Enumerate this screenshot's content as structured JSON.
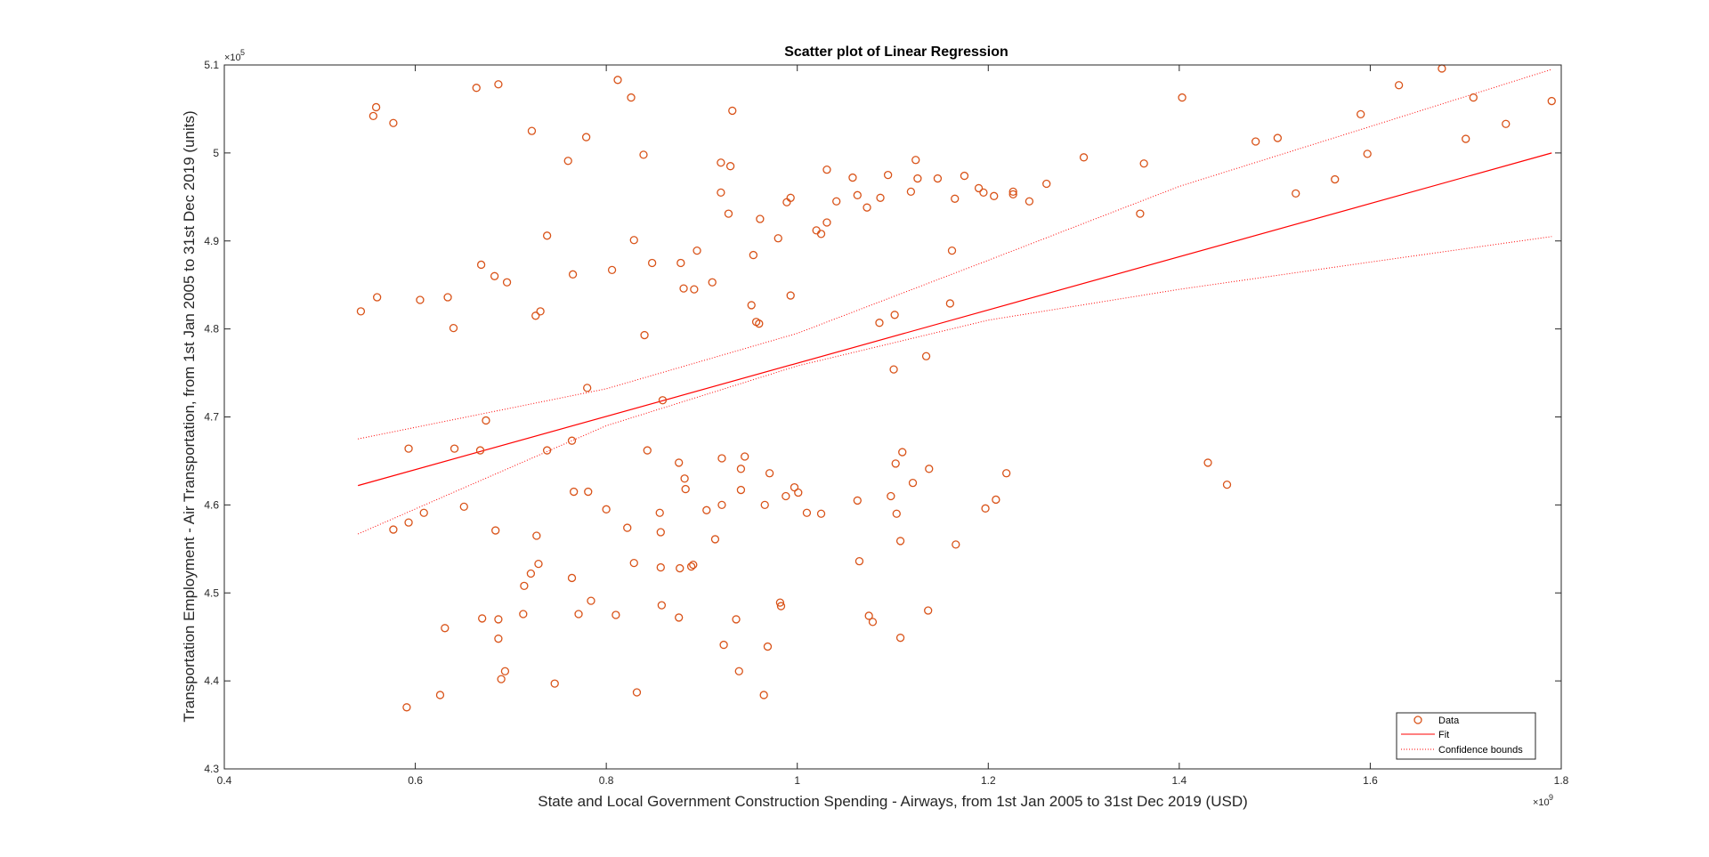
{
  "chart_data": {
    "type": "scatter",
    "title": "Scatter plot of Linear Regression",
    "xlabel": "State and Local Government Construction Spending - Airways, from 1st Jan 2005 to 31st Dec 2019 (USD)",
    "ylabel": "Transportation Employment - Air Transportation, from 1st Jan 2005 to 31st Dec 2019 (units)",
    "x_multiplier": "×10",
    "x_exponent": "9",
    "y_multiplier": "×10",
    "y_exponent": "5",
    "xlim": [
      0.4,
      1.8
    ],
    "ylim": [
      4.3,
      5.1
    ],
    "x_ticks": [
      0.4,
      0.6,
      0.8,
      1.0,
      1.2,
      1.4,
      1.6,
      1.8
    ],
    "x_tick_labels": [
      "0.4",
      "0.6",
      "0.8",
      "1",
      "1.2",
      "1.4",
      "1.6",
      "1.8"
    ],
    "y_ticks": [
      4.3,
      4.4,
      4.5,
      4.6,
      4.7,
      4.8,
      4.9,
      5.0,
      5.1
    ],
    "y_tick_labels": [
      "4.3",
      "4.4",
      "4.5",
      "4.6",
      "4.7",
      "4.8",
      "4.9",
      "5",
      "5.1"
    ],
    "grid": false,
    "legend_position": "bottom-right",
    "colors": {
      "data": "#d95319",
      "fit": "#ff0000",
      "bounds": "#ff0000",
      "axes": "#262626"
    },
    "series": [
      {
        "name": "Data",
        "marker": "circle",
        "points": [
          [
            0.543,
            4.82
          ],
          [
            0.556,
            5.042
          ],
          [
            0.559,
            5.052
          ],
          [
            0.56,
            4.836
          ],
          [
            0.577,
            5.034
          ],
          [
            0.593,
            4.664
          ],
          [
            0.605,
            4.833
          ],
          [
            0.634,
            4.836
          ],
          [
            0.64,
            4.801
          ],
          [
            0.641,
            4.664
          ],
          [
            0.664,
            5.074
          ],
          [
            0.669,
            4.873
          ],
          [
            0.674,
            4.696
          ],
          [
            0.683,
            4.86
          ],
          [
            0.687,
            5.078
          ],
          [
            0.696,
            4.853
          ],
          [
            0.668,
            4.662
          ],
          [
            0.577,
            4.572
          ],
          [
            0.593,
            4.58
          ],
          [
            0.609,
            4.591
          ],
          [
            0.651,
            4.598
          ],
          [
            0.684,
            4.571
          ],
          [
            0.591,
            4.37
          ],
          [
            0.626,
            4.384
          ],
          [
            0.631,
            4.46
          ],
          [
            0.67,
            4.471
          ],
          [
            0.687,
            4.47
          ],
          [
            0.687,
            4.448
          ],
          [
            0.69,
            4.402
          ],
          [
            0.694,
            4.411
          ],
          [
            0.713,
            4.476
          ],
          [
            0.714,
            4.508
          ],
          [
            0.721,
            4.522
          ],
          [
            0.722,
            5.025
          ],
          [
            0.726,
            4.815
          ],
          [
            0.727,
            4.565
          ],
          [
            0.729,
            4.533
          ],
          [
            0.731,
            4.82
          ],
          [
            0.738,
            4.906
          ],
          [
            0.738,
            4.662
          ],
          [
            0.746,
            4.397
          ],
          [
            0.76,
            4.991
          ],
          [
            0.764,
            4.517
          ],
          [
            0.765,
            4.862
          ],
          [
            0.766,
            4.615
          ],
          [
            0.764,
            4.673
          ],
          [
            0.771,
            4.476
          ],
          [
            0.779,
            5.018
          ],
          [
            0.78,
            4.733
          ],
          [
            0.781,
            4.615
          ],
          [
            0.784,
            4.491
          ],
          [
            0.8,
            4.595
          ],
          [
            0.806,
            4.867
          ],
          [
            0.81,
            4.475
          ],
          [
            0.812,
            5.083
          ],
          [
            0.822,
            4.574
          ],
          [
            0.826,
            5.063
          ],
          [
            0.829,
            4.534
          ],
          [
            0.829,
            4.901
          ],
          [
            0.832,
            4.387
          ],
          [
            0.839,
            4.998
          ],
          [
            0.84,
            4.793
          ],
          [
            0.843,
            4.662
          ],
          [
            0.848,
            4.875
          ],
          [
            0.856,
            4.591
          ],
          [
            0.857,
            4.529
          ],
          [
            0.857,
            4.569
          ],
          [
            0.858,
            4.486
          ],
          [
            0.859,
            4.719
          ],
          [
            0.876,
            4.648
          ],
          [
            0.876,
            4.472
          ],
          [
            0.877,
            4.528
          ],
          [
            0.878,
            4.875
          ],
          [
            0.881,
            4.846
          ],
          [
            0.882,
            4.63
          ],
          [
            0.883,
            4.618
          ],
          [
            0.889,
            4.53
          ],
          [
            0.891,
            4.532
          ],
          [
            0.892,
            4.845
          ],
          [
            0.895,
            4.889
          ],
          [
            0.905,
            4.594
          ],
          [
            0.911,
            4.853
          ],
          [
            0.914,
            4.561
          ],
          [
            0.92,
            4.989
          ],
          [
            0.92,
            4.955
          ],
          [
            0.921,
            4.653
          ],
          [
            0.921,
            4.6
          ],
          [
            0.923,
            4.441
          ],
          [
            0.928,
            4.931
          ],
          [
            0.93,
            4.985
          ],
          [
            0.932,
            5.048
          ],
          [
            0.936,
            4.47
          ],
          [
            0.939,
            4.411
          ],
          [
            0.941,
            4.617
          ],
          [
            0.941,
            4.641
          ],
          [
            0.945,
            4.655
          ],
          [
            0.952,
            4.827
          ],
          [
            0.954,
            4.884
          ],
          [
            0.957,
            4.808
          ],
          [
            0.96,
            4.806
          ],
          [
            0.961,
            4.925
          ],
          [
            0.965,
            4.384
          ],
          [
            0.966,
            4.6
          ],
          [
            0.969,
            4.439
          ],
          [
            0.971,
            4.636
          ],
          [
            0.98,
            4.903
          ],
          [
            0.982,
            4.489
          ],
          [
            0.983,
            4.485
          ],
          [
            0.988,
            4.61
          ],
          [
            0.989,
            4.944
          ],
          [
            0.993,
            4.949
          ],
          [
            0.993,
            4.838
          ],
          [
            0.997,
            4.62
          ],
          [
            1.001,
            4.614
          ],
          [
            1.01,
            4.591
          ],
          [
            1.02,
            4.912
          ],
          [
            1.025,
            4.908
          ],
          [
            1.025,
            4.59
          ],
          [
            1.031,
            4.921
          ],
          [
            1.031,
            4.981
          ],
          [
            1.041,
            4.945
          ],
          [
            1.058,
            4.972
          ],
          [
            1.063,
            4.952
          ],
          [
            1.063,
            4.605
          ],
          [
            1.065,
            4.536
          ],
          [
            1.073,
            4.938
          ],
          [
            1.075,
            4.474
          ],
          [
            1.079,
            4.467
          ],
          [
            1.086,
            4.807
          ],
          [
            1.087,
            4.949
          ],
          [
            1.095,
            4.975
          ],
          [
            1.098,
            4.61
          ],
          [
            1.101,
            4.754
          ],
          [
            1.102,
            4.816
          ],
          [
            1.103,
            4.647
          ],
          [
            1.104,
            4.59
          ],
          [
            1.108,
            4.449
          ],
          [
            1.108,
            4.559
          ],
          [
            1.11,
            4.66
          ],
          [
            1.119,
            4.956
          ],
          [
            1.121,
            4.625
          ],
          [
            1.124,
            4.992
          ],
          [
            1.126,
            4.971
          ],
          [
            1.135,
            4.769
          ],
          [
            1.137,
            4.48
          ],
          [
            1.138,
            4.641
          ],
          [
            1.147,
            4.971
          ],
          [
            1.16,
            4.829
          ],
          [
            1.162,
            4.889
          ],
          [
            1.165,
            4.948
          ],
          [
            1.166,
            4.555
          ],
          [
            1.175,
            4.974
          ],
          [
            1.19,
            4.96
          ],
          [
            1.195,
            4.955
          ],
          [
            1.197,
            4.596
          ],
          [
            1.206,
            4.951
          ],
          [
            1.208,
            4.606
          ],
          [
            1.219,
            4.636
          ],
          [
            1.226,
            4.953
          ],
          [
            1.226,
            4.956
          ],
          [
            1.243,
            4.945
          ],
          [
            1.261,
            4.965
          ],
          [
            1.3,
            4.995
          ],
          [
            1.359,
            4.931
          ],
          [
            1.363,
            4.988
          ],
          [
            1.403,
            5.063
          ],
          [
            1.43,
            4.648
          ],
          [
            1.45,
            4.623
          ],
          [
            1.48,
            5.013
          ],
          [
            1.503,
            5.017
          ],
          [
            1.522,
            4.954
          ],
          [
            1.563,
            4.97
          ],
          [
            1.59,
            5.044
          ],
          [
            1.597,
            4.999
          ],
          [
            1.63,
            5.077
          ],
          [
            1.675,
            5.096
          ],
          [
            1.7,
            5.016
          ],
          [
            1.708,
            5.063
          ],
          [
            1.742,
            5.033
          ],
          [
            1.79,
            5.059
          ]
        ]
      },
      {
        "name": "Fit",
        "line": [
          [
            0.54,
            4.622
          ],
          [
            1.79,
            5.0
          ]
        ]
      },
      {
        "name": "Confidence bounds",
        "upper": [
          [
            0.54,
            4.675
          ],
          [
            0.8,
            4.732
          ],
          [
            1.0,
            4.795
          ],
          [
            1.2,
            4.878
          ],
          [
            1.4,
            4.962
          ],
          [
            1.6,
            5.03
          ],
          [
            1.79,
            5.095
          ]
        ],
        "lower": [
          [
            0.54,
            4.567
          ],
          [
            0.8,
            4.69
          ],
          [
            1.0,
            4.758
          ],
          [
            1.2,
            4.81
          ],
          [
            1.4,
            4.845
          ],
          [
            1.6,
            4.876
          ],
          [
            1.79,
            4.905
          ]
        ]
      }
    ]
  }
}
